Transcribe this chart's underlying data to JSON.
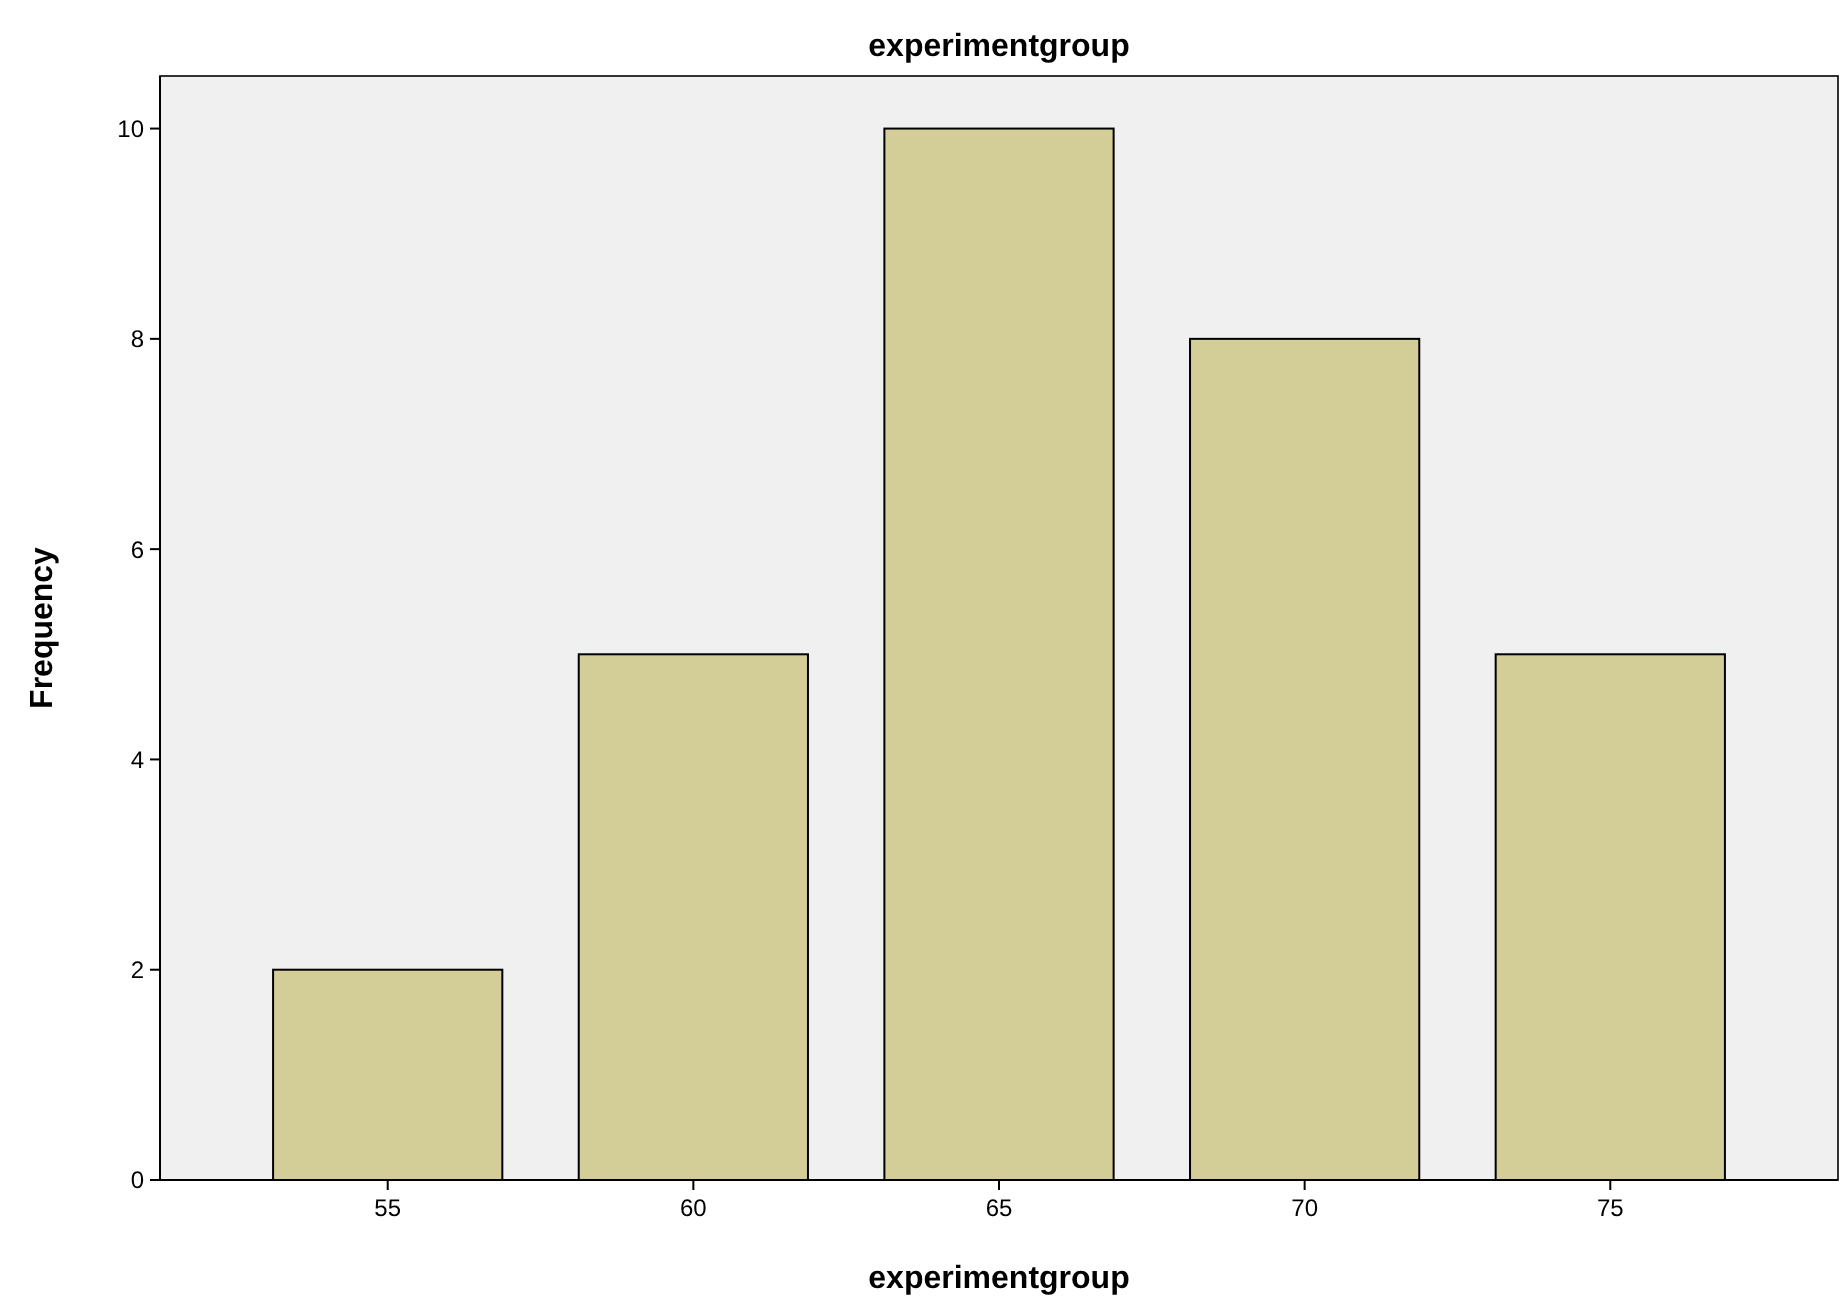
{
  "chart_data": {
    "type": "bar",
    "title": "experimentgroup",
    "xlabel": "experimentgroup",
    "ylabel": "Frequency",
    "categories": [
      "55",
      "60",
      "65",
      "70",
      "75"
    ],
    "values": [
      2,
      5,
      10,
      8,
      5
    ],
    "color": "#d3ce97",
    "ylim": [
      0,
      10.5
    ],
    "yticks": [
      0,
      2,
      4,
      6,
      8,
      10
    ],
    "grid": false
  }
}
